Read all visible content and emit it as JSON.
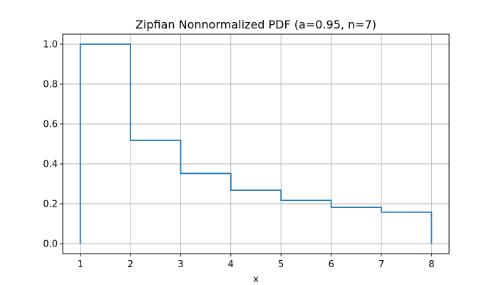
{
  "chart_data": {
    "type": "line",
    "drawstyle": "steps-post",
    "title": "Zipfian Nonnormalized PDF (a=0.95, n=7)",
    "xlabel": "x",
    "ylabel": "",
    "xlim": [
      0.65,
      8.35
    ],
    "ylim": [
      -0.05,
      1.05
    ],
    "xticks": [
      1,
      2,
      3,
      4,
      5,
      6,
      7,
      8
    ],
    "xtick_labels": [
      "1",
      "2",
      "3",
      "4",
      "5",
      "6",
      "7",
      "8"
    ],
    "yticks": [
      0.0,
      0.2,
      0.4,
      0.6,
      0.8,
      1.0
    ],
    "ytick_labels": [
      "0.0",
      "0.2",
      "0.4",
      "0.6",
      "0.8",
      "1.0"
    ],
    "grid": true,
    "series": [
      {
        "color": "#1f77b4",
        "x": [
          1,
          1,
          2,
          3,
          4,
          5,
          6,
          7,
          8,
          8
        ],
        "y": [
          0.0,
          1.0,
          0.518,
          0.352,
          0.268,
          0.217,
          0.182,
          0.158,
          0.158,
          0.0
        ]
      }
    ]
  }
}
